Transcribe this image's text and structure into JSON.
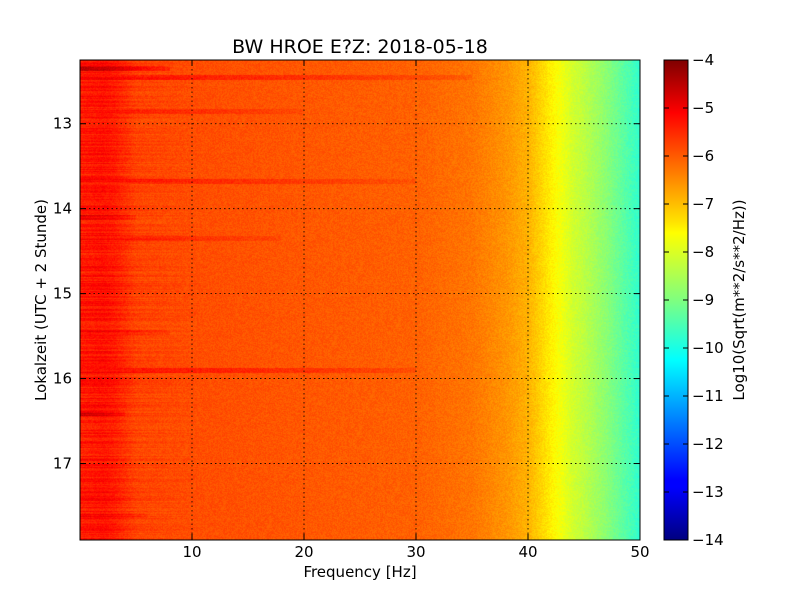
{
  "chart_data": {
    "type": "heatmap",
    "title": "BW HROE E?Z: 2018-05-18",
    "xlabel": "Frequency [Hz]",
    "ylabel": "Lokalzeit (UTC + 2 Stunde)",
    "colorbar_label": "Log10(Sqrt(m**2/s**2/Hz))",
    "xlim": [
      0,
      50
    ],
    "ylim": [
      12.25,
      17.9
    ],
    "y_inverted": true,
    "x_ticks": [
      10,
      20,
      30,
      40,
      50
    ],
    "y_ticks": [
      13,
      14,
      15,
      16,
      17
    ],
    "colorbar_range": [
      -14,
      -4
    ],
    "colorbar_ticks": [
      -4,
      -5,
      -6,
      -7,
      -8,
      -9,
      -10,
      -11,
      -12,
      -13,
      -14
    ],
    "colormap": "jet",
    "grid": true,
    "grid_style": "dotted",
    "frequency_profile": {
      "x": [
        0,
        2,
        3,
        5,
        10,
        20,
        30,
        35,
        38,
        40,
        41,
        42,
        43,
        44,
        45,
        47,
        49,
        50
      ],
      "value": [
        -5.5,
        -5.4,
        -5.5,
        -5.9,
        -6.0,
        -6.1,
        -6.2,
        -6.4,
        -6.7,
        -7.0,
        -7.3,
        -7.6,
        -7.9,
        -8.2,
        -8.4,
        -8.9,
        -9.5,
        -9.8
      ]
    },
    "bright_bands": [
      {
        "time": 12.35,
        "freq_max": 8,
        "value": -4.6
      },
      {
        "time": 12.45,
        "freq_max": 35,
        "value": -5.3
      },
      {
        "time": 12.85,
        "freq_max": 20,
        "value": -5.4
      },
      {
        "time": 13.68,
        "freq_max": 30,
        "value": -5.4
      },
      {
        "time": 14.1,
        "freq_max": 5,
        "value": -4.9
      },
      {
        "time": 14.35,
        "freq_max": 18,
        "value": -5.4
      },
      {
        "time": 15.45,
        "freq_max": 8,
        "value": -5.2
      },
      {
        "time": 15.9,
        "freq_max": 30,
        "value": -5.2
      },
      {
        "time": 16.4,
        "freq_max": 4,
        "value": -4.7
      },
      {
        "time": 17.6,
        "freq_max": 6,
        "value": -5.2
      }
    ]
  }
}
